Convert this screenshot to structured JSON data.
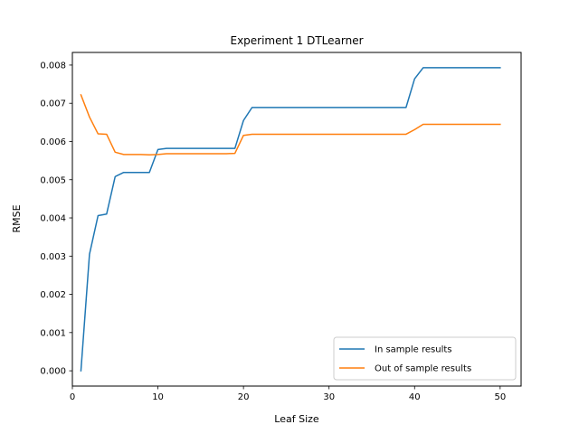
{
  "chart_data": {
    "type": "line",
    "title": "Experiment 1 DTLearner",
    "xlabel": "Leaf Size",
    "ylabel": "RMSE",
    "xlim": [
      0,
      52.45
    ],
    "ylim": [
      -0.0004,
      0.00833
    ],
    "xticks": [
      0,
      10,
      20,
      30,
      40,
      50
    ],
    "xtick_labels": [
      "0",
      "10",
      "20",
      "30",
      "40",
      "50"
    ],
    "yticks": [
      0,
      0.001,
      0.002,
      0.003,
      0.004,
      0.005,
      0.006,
      0.007,
      0.008
    ],
    "ytick_labels": [
      "0.000",
      "0.001",
      "0.002",
      "0.003",
      "0.004",
      "0.005",
      "0.006",
      "0.007",
      "0.008"
    ],
    "grid": false,
    "legend_position": "lower-right",
    "series": [
      {
        "name": "In sample results",
        "color": "#1f77b4",
        "x": [
          1,
          2,
          3,
          4,
          5,
          6,
          7,
          8,
          9,
          10,
          11,
          12,
          13,
          14,
          15,
          16,
          17,
          18,
          19,
          20,
          21,
          22,
          23,
          24,
          25,
          26,
          27,
          28,
          29,
          30,
          31,
          32,
          33,
          34,
          35,
          36,
          37,
          38,
          39,
          40,
          41,
          42,
          43,
          44,
          45,
          46,
          47,
          48,
          49,
          50
        ],
        "values": [
          0.0,
          0.00305,
          0.00406,
          0.0041,
          0.00508,
          0.00519,
          0.00519,
          0.00519,
          0.00519,
          0.00579,
          0.00582,
          0.00582,
          0.00582,
          0.00582,
          0.00582,
          0.00582,
          0.00582,
          0.00582,
          0.00582,
          0.00655,
          0.00689,
          0.00689,
          0.00689,
          0.00689,
          0.00689,
          0.00689,
          0.00689,
          0.00689,
          0.00689,
          0.00689,
          0.00689,
          0.00689,
          0.00689,
          0.00689,
          0.00689,
          0.00689,
          0.00689,
          0.00689,
          0.00689,
          0.00764,
          0.00793,
          0.00793,
          0.00793,
          0.00793,
          0.00793,
          0.00793,
          0.00793,
          0.00793,
          0.00793,
          0.00793
        ]
      },
      {
        "name": "Out of sample results",
        "color": "#ff7f0e",
        "x": [
          1,
          2,
          3,
          4,
          5,
          6,
          7,
          8,
          9,
          10,
          11,
          12,
          13,
          14,
          15,
          16,
          17,
          18,
          19,
          20,
          21,
          22,
          23,
          24,
          25,
          26,
          27,
          28,
          29,
          30,
          31,
          32,
          33,
          34,
          35,
          36,
          37,
          38,
          39,
          40,
          41,
          42,
          43,
          44,
          45,
          46,
          47,
          48,
          49,
          50
        ],
        "values": [
          0.00722,
          0.00664,
          0.0062,
          0.00619,
          0.00572,
          0.00566,
          0.00566,
          0.00566,
          0.00565,
          0.00566,
          0.00568,
          0.00568,
          0.00568,
          0.00568,
          0.00568,
          0.00568,
          0.00568,
          0.00568,
          0.00569,
          0.00616,
          0.00619,
          0.00619,
          0.00619,
          0.00619,
          0.00619,
          0.00619,
          0.00619,
          0.00619,
          0.00619,
          0.00619,
          0.00619,
          0.00619,
          0.00619,
          0.00619,
          0.00619,
          0.00619,
          0.00619,
          0.00619,
          0.00619,
          0.00631,
          0.00645,
          0.00645,
          0.00645,
          0.00645,
          0.00645,
          0.00645,
          0.00645,
          0.00645,
          0.00645,
          0.00645
        ]
      }
    ]
  }
}
